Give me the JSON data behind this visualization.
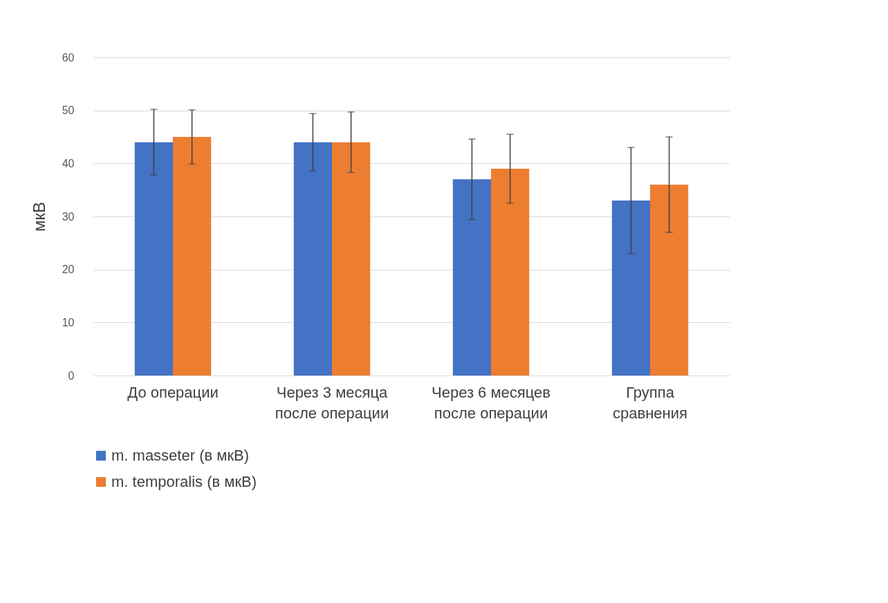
{
  "chart_data": {
    "type": "bar",
    "ylabel": "мкВ",
    "categories": [
      "До операции",
      "Через 3 месяца\nпосле операции",
      "Через 6 месяцев\nпосле операции",
      "Группа\nсравнения"
    ],
    "series": [
      {
        "name": "m. masseter (в мкВ)",
        "color": "#4472c4",
        "values": [
          44,
          44,
          37,
          33
        ],
        "errors": [
          6.2,
          5.4,
          7.6,
          10
        ]
      },
      {
        "name": "m. temporalis (в мкВ)",
        "color": "#ed7d31",
        "values": [
          45,
          44,
          39,
          36
        ],
        "errors": [
          5.1,
          5.7,
          6.5,
          9
        ]
      }
    ],
    "ylim": [
      0,
      60
    ],
    "yticks": [
      0,
      10,
      20,
      30,
      40,
      50,
      60
    ],
    "grid": "y",
    "legend": "bottom"
  }
}
